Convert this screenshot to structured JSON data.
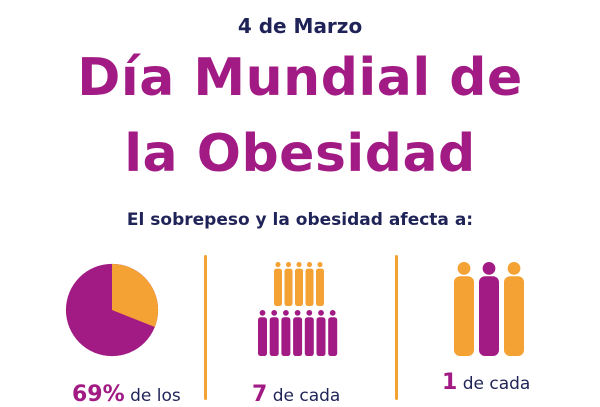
{
  "header": {
    "date": "4 de Marzo",
    "title_line1": "Día Mundial de",
    "title_line2": "la Obesidad",
    "subtitle": "El sobrepeso y la obesidad afecta a:"
  },
  "colors": {
    "purple": "#a21a83",
    "orange": "#f3a233",
    "navy": "#1f2357"
  },
  "stat1": {
    "value": "69%",
    "text": " de los",
    "percent": 69
  },
  "stat2": {
    "value": "7",
    "text": " de cada"
  },
  "stat3": {
    "value": "1",
    "text": " de cada"
  },
  "icons": {
    "pie": "pie-chart-icon",
    "people_group": "people-group-icon",
    "people_trio": "people-trio-icon"
  }
}
